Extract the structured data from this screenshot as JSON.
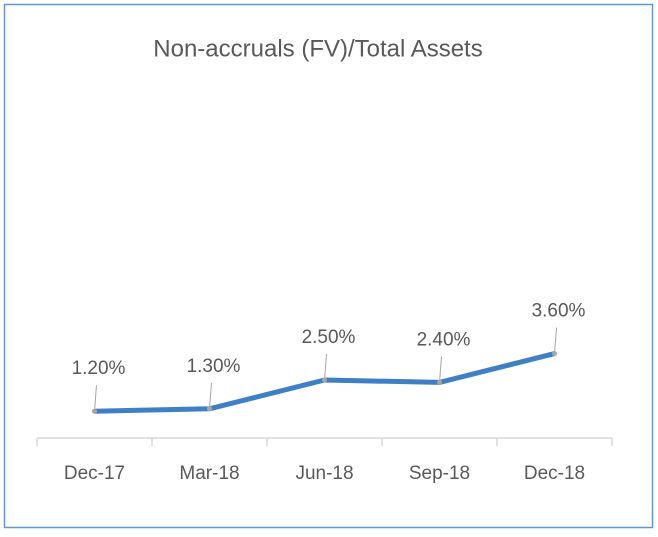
{
  "chart_data": {
    "type": "line",
    "title": "Non-accruals (FV)/Total Assets",
    "categories": [
      "Dec-17",
      "Mar-18",
      "Jun-18",
      "Sep-18",
      "Dec-18"
    ],
    "series": [
      {
        "name": null,
        "color": "#3f7fc6",
        "values": [
          1.2,
          1.3,
          2.5,
          2.4,
          3.6
        ],
        "value_labels": [
          "1.20%",
          "1.30%",
          "2.50%",
          "2.40%",
          "3.60%"
        ]
      }
    ]
  }
}
